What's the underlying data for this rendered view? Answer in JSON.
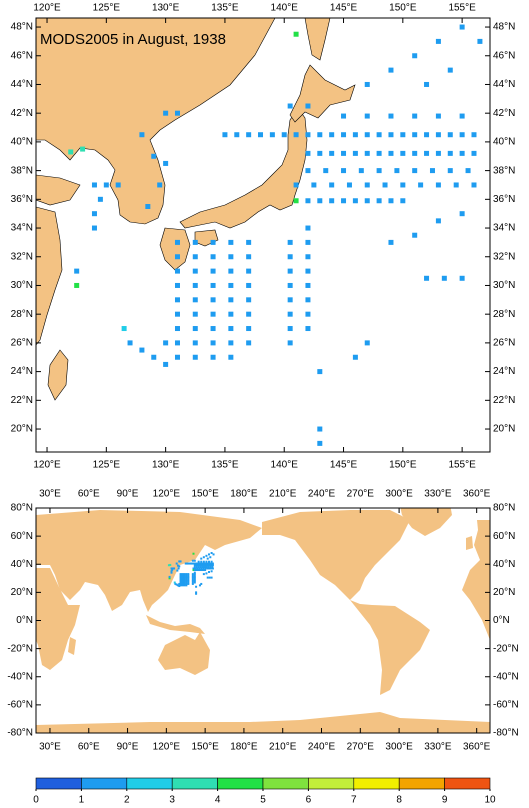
{
  "title": "MODS2005 in August, 1938",
  "regional_map": {
    "lon_range": [
      119.07,
      157.35
    ],
    "lat_range": [
      18.4,
      48.63
    ],
    "lon_ticks": [
      {
        "value": 120,
        "label": "120°E"
      },
      {
        "value": 125,
        "label": "125°E"
      },
      {
        "value": 130,
        "label": "130°E"
      },
      {
        "value": 135,
        "label": "135°E"
      },
      {
        "value": 140,
        "label": "140°E"
      },
      {
        "value": 145,
        "label": "145°E"
      },
      {
        "value": 150,
        "label": "150°E"
      },
      {
        "value": 155,
        "label": "155°E"
      }
    ],
    "lat_ticks": [
      {
        "value": 48,
        "label": "48°N"
      },
      {
        "value": 46,
        "label": "46°N"
      },
      {
        "value": 44,
        "label": "44°N"
      },
      {
        "value": 42,
        "label": "42°N"
      },
      {
        "value": 40,
        "label": "40°N"
      },
      {
        "value": 38,
        "label": "38°N"
      },
      {
        "value": 36,
        "label": "36°N"
      },
      {
        "value": 34,
        "label": "34°N"
      },
      {
        "value": 32,
        "label": "32°N"
      },
      {
        "value": 30,
        "label": "30°N"
      },
      {
        "value": 28,
        "label": "28°N"
      },
      {
        "value": 26,
        "label": "26°N"
      },
      {
        "value": 24,
        "label": "24°N"
      },
      {
        "value": 22,
        "label": "22°N"
      },
      {
        "value": 20,
        "label": "20°N"
      }
    ]
  },
  "global_map": {
    "lon_range": [
      19.2,
      370.3
    ],
    "lat_range": [
      -80,
      80
    ],
    "lon_ticks": [
      {
        "value": 30,
        "label": "30°E"
      },
      {
        "value": 60,
        "label": "60°E"
      },
      {
        "value": 90,
        "label": "90°E"
      },
      {
        "value": 120,
        "label": "120°E"
      },
      {
        "value": 150,
        "label": "150°E"
      },
      {
        "value": 180,
        "label": "180°E"
      },
      {
        "value": 210,
        "label": "210°E"
      },
      {
        "value": 240,
        "label": "240°E"
      },
      {
        "value": 270,
        "label": "270°E"
      },
      {
        "value": 300,
        "label": "300°E"
      },
      {
        "value": 330,
        "label": "330°E"
      },
      {
        "value": 360,
        "label": "360°E"
      }
    ],
    "lat_ticks": [
      {
        "value": 80,
        "label": "80°N"
      },
      {
        "value": 60,
        "label": "60°N"
      },
      {
        "value": 40,
        "label": "40°N"
      },
      {
        "value": 20,
        "label": "20°N"
      },
      {
        "value": 0,
        "label": "0°N"
      },
      {
        "value": -20,
        "label": "-20°N"
      },
      {
        "value": -40,
        "label": "-40°N"
      },
      {
        "value": -60,
        "label": "-60°N"
      },
      {
        "value": -80,
        "label": "-80°N"
      }
    ]
  },
  "colorbar": {
    "ticks": [
      0,
      1,
      2,
      3,
      4,
      5,
      6,
      7,
      8,
      9,
      10
    ],
    "colors": [
      "#1f5fde",
      "#1e9cf0",
      "#20cde8",
      "#2fdfb2",
      "#22e046",
      "#7fe23e",
      "#c2ef3a",
      "#f2ef00",
      "#f3a400",
      "#ef5412"
    ]
  },
  "observations": {
    "points": [
      [
        135,
        40.5,
        1
      ],
      [
        136,
        40.5,
        1
      ],
      [
        137,
        40.5,
        1
      ],
      [
        138,
        40.5,
        1
      ],
      [
        139,
        40.5,
        1
      ],
      [
        140,
        40.5,
        1
      ],
      [
        141,
        40.5,
        1
      ],
      [
        142,
        40.5,
        1
      ],
      [
        143,
        40.5,
        1
      ],
      [
        144,
        40.5,
        1
      ],
      [
        145,
        40.5,
        1
      ],
      [
        146,
        40.5,
        1
      ],
      [
        147,
        40.5,
        1
      ],
      [
        148,
        40.5,
        1
      ],
      [
        149,
        40.5,
        1
      ],
      [
        150,
        40.5,
        1
      ],
      [
        151,
        40.5,
        1
      ],
      [
        152,
        40.5,
        1
      ],
      [
        153,
        40.5,
        1
      ],
      [
        154,
        40.5,
        1
      ],
      [
        155,
        40.5,
        1
      ],
      [
        156,
        40.5,
        1
      ],
      [
        142,
        39.2,
        1
      ],
      [
        143,
        39.2,
        1
      ],
      [
        144,
        39.2,
        1
      ],
      [
        145,
        39.2,
        1
      ],
      [
        146,
        39.2,
        1
      ],
      [
        147,
        39.2,
        1
      ],
      [
        148,
        39.2,
        1
      ],
      [
        149,
        39.2,
        1
      ],
      [
        150,
        39.2,
        1
      ],
      [
        151,
        39.2,
        1
      ],
      [
        152,
        39.2,
        1
      ],
      [
        153,
        39.2,
        1
      ],
      [
        154,
        39.2,
        1
      ],
      [
        155,
        39.2,
        1
      ],
      [
        156,
        39.2,
        1
      ],
      [
        142,
        38,
        1
      ],
      [
        143.5,
        38,
        1
      ],
      [
        145,
        38,
        1
      ],
      [
        146.5,
        38,
        1
      ],
      [
        148,
        38,
        1
      ],
      [
        149.5,
        38,
        1
      ],
      [
        151,
        38,
        1
      ],
      [
        152.5,
        38,
        1
      ],
      [
        154,
        38,
        1
      ],
      [
        155.5,
        38,
        1
      ],
      [
        141,
        37,
        1
      ],
      [
        142.5,
        37,
        1
      ],
      [
        144,
        37,
        1
      ],
      [
        145.5,
        37,
        1
      ],
      [
        147,
        37,
        1
      ],
      [
        148.5,
        37,
        1
      ],
      [
        150,
        37,
        1
      ],
      [
        151.5,
        37,
        1
      ],
      [
        153,
        37,
        1
      ],
      [
        154.5,
        37,
        1
      ],
      [
        156,
        37,
        1
      ],
      [
        141,
        35.9,
        4
      ],
      [
        142,
        35.9,
        1
      ],
      [
        143,
        35.9,
        1
      ],
      [
        144,
        35.9,
        1
      ],
      [
        145,
        35.9,
        1
      ],
      [
        146,
        35.9,
        1
      ],
      [
        147,
        35.9,
        1
      ],
      [
        148,
        35.9,
        1
      ],
      [
        149,
        35.9,
        1
      ],
      [
        150,
        35.9,
        1
      ],
      [
        140.5,
        42.5,
        1
      ],
      [
        141,
        47.5,
        4
      ],
      [
        142,
        42.5,
        1
      ],
      [
        145,
        41.8,
        1
      ],
      [
        147,
        41.8,
        1
      ],
      [
        149,
        41.8,
        1
      ],
      [
        151,
        41.8,
        1
      ],
      [
        153,
        41.8,
        1
      ],
      [
        155,
        41.8,
        1
      ],
      [
        147,
        44,
        1
      ],
      [
        149,
        45,
        1
      ],
      [
        151,
        46,
        1
      ],
      [
        153,
        47,
        1
      ],
      [
        155,
        48,
        1
      ],
      [
        156.5,
        47,
        1
      ],
      [
        154,
        45,
        1
      ],
      [
        152,
        44,
        1
      ],
      [
        131,
        33,
        1
      ],
      [
        131,
        32,
        1
      ],
      [
        131,
        31,
        1
      ],
      [
        131,
        30,
        1
      ],
      [
        131,
        29,
        1
      ],
      [
        131,
        28,
        1
      ],
      [
        131,
        27,
        1
      ],
      [
        131,
        26,
        1
      ],
      [
        131,
        25,
        1
      ],
      [
        132.5,
        33,
        1
      ],
      [
        132.5,
        32,
        1
      ],
      [
        132.5,
        31,
        1
      ],
      [
        132.5,
        30,
        1
      ],
      [
        132.5,
        29,
        1
      ],
      [
        132.5,
        28,
        1
      ],
      [
        132.5,
        27,
        1
      ],
      [
        132.5,
        26,
        1
      ],
      [
        132.5,
        25,
        1
      ],
      [
        134,
        33,
        1
      ],
      [
        134,
        32,
        1
      ],
      [
        134,
        31,
        1
      ],
      [
        134,
        30,
        1
      ],
      [
        134,
        29,
        1
      ],
      [
        134,
        28,
        1
      ],
      [
        134,
        27,
        1
      ],
      [
        134,
        26,
        1
      ],
      [
        134,
        25,
        1
      ],
      [
        135.5,
        33,
        1
      ],
      [
        135.5,
        32,
        1
      ],
      [
        135.5,
        31,
        1
      ],
      [
        135.5,
        30,
        1
      ],
      [
        135.5,
        29,
        1
      ],
      [
        135.5,
        28,
        1
      ],
      [
        135.5,
        27,
        1
      ],
      [
        135.5,
        26,
        1
      ],
      [
        135.5,
        25,
        1
      ],
      [
        137,
        33,
        1
      ],
      [
        137,
        32,
        1
      ],
      [
        137,
        31,
        1
      ],
      [
        137,
        30,
        1
      ],
      [
        137,
        29,
        1
      ],
      [
        137,
        28,
        1
      ],
      [
        137,
        27,
        1
      ],
      [
        137,
        26,
        1
      ],
      [
        140.5,
        33,
        1
      ],
      [
        140.5,
        32,
        1
      ],
      [
        140.5,
        31,
        1
      ],
      [
        140.5,
        30,
        1
      ],
      [
        140.5,
        29,
        1
      ],
      [
        140.5,
        28,
        1
      ],
      [
        140.5,
        27,
        1
      ],
      [
        140.5,
        26,
        1
      ],
      [
        142,
        34,
        1
      ],
      [
        142,
        33,
        1
      ],
      [
        142,
        32,
        1
      ],
      [
        142,
        31,
        1
      ],
      [
        142,
        30,
        1
      ],
      [
        142,
        29,
        1
      ],
      [
        142,
        28,
        1
      ],
      [
        142,
        27,
        1
      ],
      [
        143,
        24,
        1
      ],
      [
        143,
        20,
        1
      ],
      [
        143,
        19,
        1
      ],
      [
        147,
        26,
        1
      ],
      [
        146,
        25,
        1
      ],
      [
        124,
        37,
        1
      ],
      [
        125,
        37,
        1
      ],
      [
        126,
        37,
        1
      ],
      [
        124,
        35,
        1
      ],
      [
        124,
        34,
        1
      ],
      [
        124.5,
        36,
        1
      ],
      [
        128.5,
        35.5,
        1
      ],
      [
        129.5,
        37,
        1
      ],
      [
        130,
        38.5,
        1
      ],
      [
        129,
        39,
        1
      ],
      [
        128,
        40.5,
        1
      ],
      [
        130,
        42,
        1
      ],
      [
        131,
        42,
        1
      ],
      [
        122,
        39.3,
        3
      ],
      [
        123,
        39.5,
        3
      ],
      [
        127,
        26,
        1
      ],
      [
        128,
        25.5,
        1
      ],
      [
        129,
        25,
        1
      ],
      [
        126.5,
        27,
        2
      ],
      [
        130,
        26,
        1
      ],
      [
        130,
        24.5,
        1
      ],
      [
        149,
        33,
        1
      ],
      [
        151,
        33.5,
        1
      ],
      [
        153,
        34.5,
        1
      ],
      [
        155,
        35,
        1
      ],
      [
        152,
        30.5,
        1
      ],
      [
        153.5,
        30.5,
        1
      ],
      [
        155,
        30.5,
        1
      ],
      [
        122.5,
        30,
        4
      ],
      [
        122.5,
        31,
        1
      ]
    ]
  }
}
